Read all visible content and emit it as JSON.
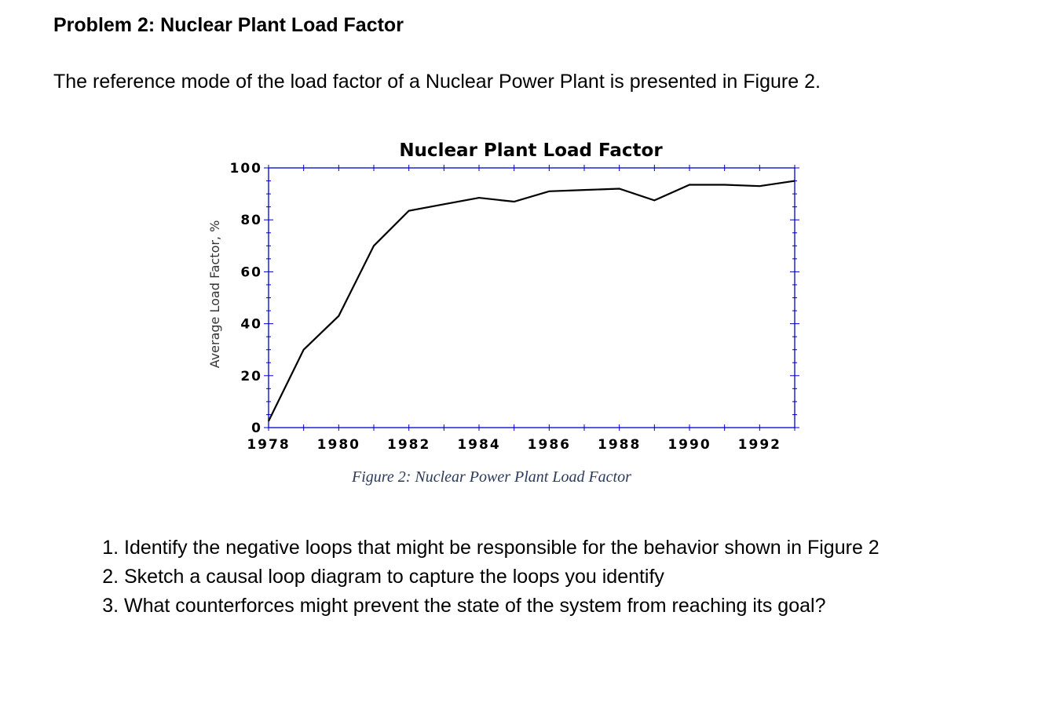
{
  "heading": "Problem 2: Nuclear Plant Load Factor",
  "intro": "The reference mode of the load factor of a Nuclear Power Plant is presented in Figure 2.",
  "caption": "Figure 2: Nuclear Power Plant Load Factor",
  "questions": [
    "Identify the negative loops that might be responsible for the behavior shown in Figure 2",
    "Sketch a causal loop diagram to capture the loops you identify",
    "What counterforces might prevent the state of the system from reaching its goal?"
  ],
  "chart_data": {
    "type": "line",
    "title": "Nuclear Plant Load Factor",
    "xlabel": "",
    "ylabel": "Average Load Factor, %",
    "xlim": [
      1978,
      1993
    ],
    "ylim": [
      0,
      100
    ],
    "xticks": [
      "1978",
      "1980",
      "1982",
      "1984",
      "1986",
      "1988",
      "1990",
      "1992"
    ],
    "yticks": [
      "0",
      "20",
      "40",
      "60",
      "80",
      "100"
    ],
    "x": [
      1978,
      1979,
      1980,
      1981,
      1982,
      1983,
      1984,
      1985,
      1986,
      1987,
      1988,
      1989,
      1990,
      1991,
      1992,
      1993
    ],
    "values": [
      2.5,
      30,
      43,
      70,
      83.5,
      86,
      88.5,
      87,
      91,
      91.5,
      92,
      87.5,
      93.5,
      93.5,
      93,
      95
    ],
    "axis_color": "#0000cc",
    "line_color": "#000000",
    "grid": false
  }
}
